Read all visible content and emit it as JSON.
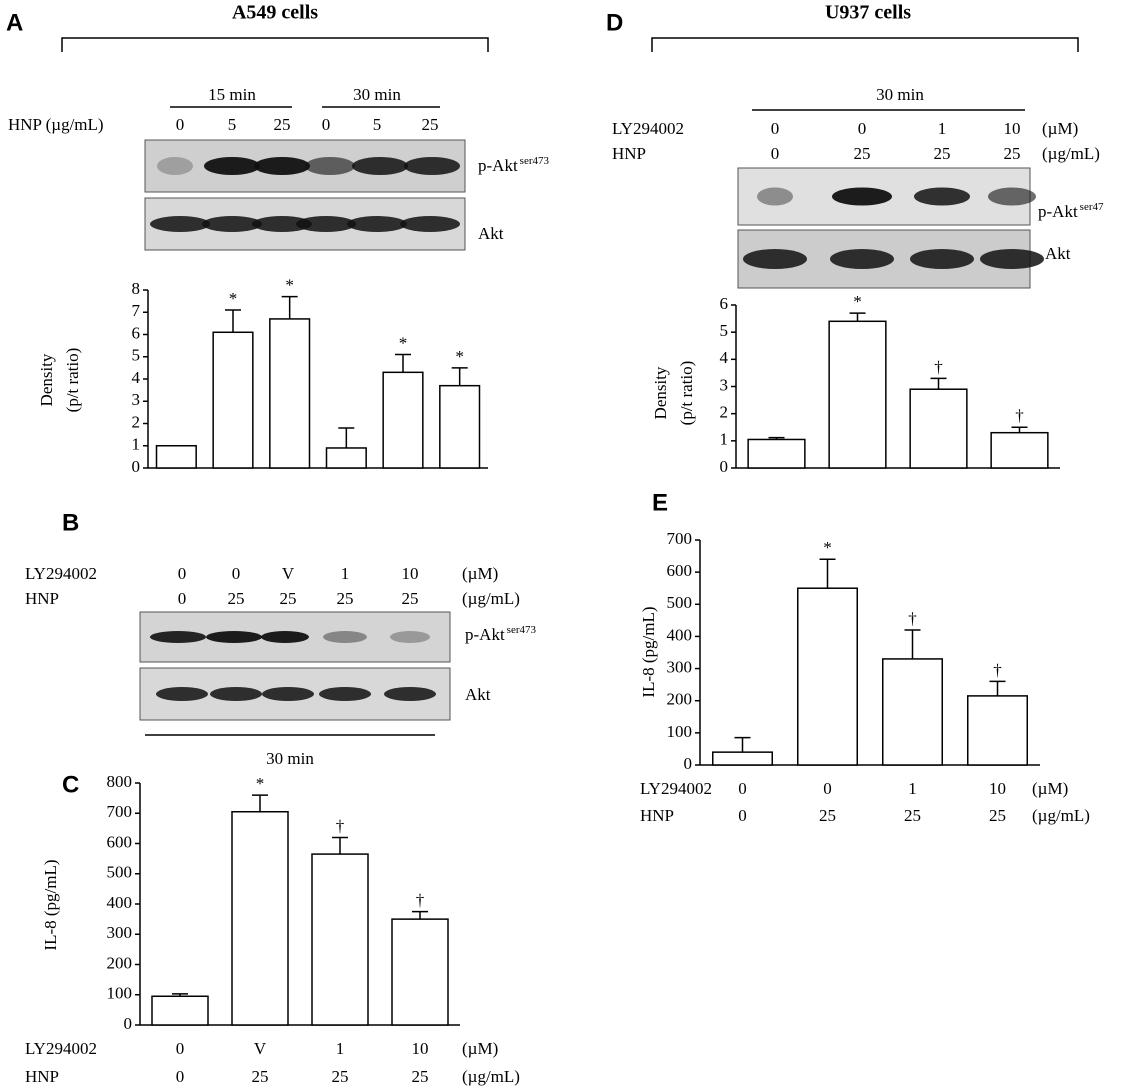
{
  "panel_labels": [
    "A",
    "B",
    "C",
    "D",
    "E"
  ],
  "headers": [
    "A549 cells",
    "U937 cells"
  ],
  "blots": {
    "a": {
      "times": [
        "15 min",
        "30 min"
      ],
      "row_label": "HNP (µg/mL)",
      "lanes": [
        "0",
        "5",
        "25",
        "0",
        "5",
        "25"
      ],
      "bands": [
        {
          "name": "p-Akt",
          "sup": "ser473"
        },
        {
          "name": "Akt"
        }
      ]
    },
    "b": {
      "rows": [
        {
          "name": "LY294002",
          "lanes": [
            "0",
            "0",
            "V",
            "1",
            "10"
          ],
          "unit": "(µM)"
        },
        {
          "name": "HNP",
          "lanes": [
            "0",
            "25",
            "25",
            "25",
            "25"
          ],
          "unit": "(µg/mL)"
        }
      ],
      "bands": [
        {
          "name": "p-Akt",
          "sup": "ser473"
        },
        {
          "name": "Akt"
        }
      ],
      "time": "30 min"
    },
    "d": {
      "time": "30 min",
      "rows": [
        {
          "name": "LY294002",
          "lanes": [
            "0",
            "0",
            "1",
            "10"
          ],
          "unit": "(µM)"
        },
        {
          "name": "HNP",
          "lanes": [
            "0",
            "25",
            "25",
            "25"
          ],
          "unit": "(µg/mL)"
        }
      ],
      "bands": [
        {
          "name": "p-Akt",
          "sup": "ser47"
        },
        {
          "name": "Akt"
        }
      ]
    }
  },
  "chart_data": [
    {
      "type": "bar",
      "ylabel": "Density",
      "ylabel2": "(p/t ratio)",
      "categories": [
        null,
        null,
        null,
        null,
        null,
        null
      ],
      "values": [
        1,
        6.1,
        6.7,
        0.9,
        4.3,
        3.7
      ],
      "errors": [
        null,
        1.0,
        1.0,
        0.9,
        0.8,
        0.8
      ],
      "annotations": [
        null,
        "*",
        "*",
        null,
        "*",
        "*"
      ],
      "ylim": [
        0,
        8
      ],
      "yticks": [
        0,
        1,
        2,
        3,
        4,
        5,
        6,
        7,
        8
      ],
      "color": "#ffffff"
    },
    {
      "type": "bar",
      "ylabel": "IL-8 (pg/mL)",
      "categories": [
        null,
        null,
        null,
        null
      ],
      "values": [
        95,
        705,
        565,
        350
      ],
      "errors": [
        8,
        55,
        55,
        25
      ],
      "annotations": [
        null,
        "*",
        "†",
        "†"
      ],
      "rows": [
        {
          "name": "LY294002",
          "labels": [
            "0",
            "V",
            "1",
            "10"
          ],
          "unit": "(µM)"
        },
        {
          "name": "HNP",
          "labels": [
            "0",
            "25",
            "25",
            "25"
          ],
          "unit": "(µg/mL)"
        }
      ],
      "ylim": [
        0,
        800
      ],
      "yticks": [
        0,
        100,
        200,
        300,
        400,
        500,
        600,
        700,
        800
      ],
      "color": "#ffffff"
    },
    {
      "type": "bar",
      "ylabel": "Density",
      "ylabel2": "(p/t ratio)",
      "categories": [
        null,
        null,
        null,
        null
      ],
      "values": [
        1.05,
        5.4,
        2.9,
        1.3
      ],
      "errors": [
        0.07,
        0.3,
        0.4,
        0.2
      ],
      "annotations": [
        null,
        "*",
        "†",
        "†"
      ],
      "ylim": [
        0,
        6
      ],
      "yticks": [
        0,
        1,
        2,
        3,
        4,
        5,
        6
      ],
      "color": "#ffffff"
    },
    {
      "type": "bar",
      "ylabel": "IL-8 (pg/mL)",
      "categories": [
        null,
        null,
        null,
        null
      ],
      "values": [
        40,
        550,
        330,
        215
      ],
      "errors": [
        45,
        90,
        90,
        45
      ],
      "annotations": [
        null,
        "*",
        "†",
        "†"
      ],
      "rows": [
        {
          "name": "LY294002",
          "labels": [
            "0",
            "0",
            "1",
            "10"
          ],
          "unit": "(µM)"
        },
        {
          "name": "HNP",
          "labels": [
            "0",
            "25",
            "25",
            "25"
          ],
          "unit": "(µg/mL)"
        }
      ],
      "ylim": [
        0,
        700
      ],
      "yticks": [
        0,
        100,
        200,
        300,
        400,
        500,
        600,
        700
      ],
      "color": "#ffffff"
    }
  ]
}
